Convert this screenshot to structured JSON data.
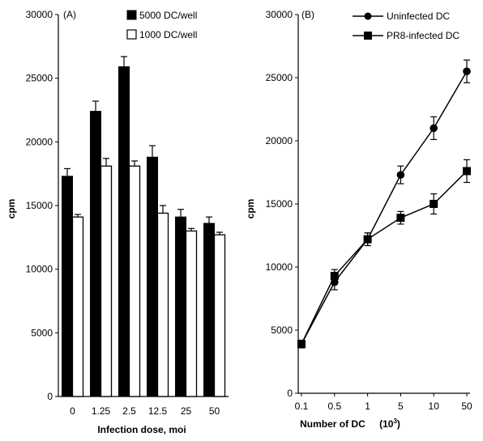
{
  "chart_data": [
    {
      "type": "bar",
      "panel_label": "(A)",
      "xlabel": "Infection dose, moi",
      "ylabel": "cpm",
      "ylim": [
        0,
        30000
      ],
      "yticks": [
        0,
        5000,
        10000,
        15000,
        20000,
        25000,
        30000
      ],
      "categories": [
        "0",
        "1.25",
        "2.5",
        "12.5",
        "25",
        "50"
      ],
      "legend_position": "top-right",
      "series": [
        {
          "name": "5000 DC/well",
          "color": "#000000",
          "values": [
            17300,
            22400,
            25900,
            18800,
            14100,
            13600
          ],
          "errors": [
            600,
            800,
            800,
            900,
            600,
            500
          ]
        },
        {
          "name": "1000 DC/well",
          "color": "#ffffff",
          "values": [
            14100,
            18100,
            18100,
            14400,
            13000,
            12700
          ],
          "errors": [
            200,
            600,
            400,
            600,
            200,
            200
          ]
        }
      ]
    },
    {
      "type": "line",
      "panel_label": "(B)",
      "xlabel": "Number of DC",
      "xlabel_unit": "(10",
      "xlabel_unit_sup": "3",
      "xlabel_unit_close": ")",
      "ylabel": "cpm",
      "ylim": [
        0,
        30000
      ],
      "yticks": [
        0,
        5000,
        10000,
        15000,
        20000,
        25000,
        30000
      ],
      "categories": [
        "0.1",
        "0.5",
        "1",
        "5",
        "10",
        "50"
      ],
      "legend_position": "top-left",
      "series": [
        {
          "name": "Uninfected DC",
          "marker": "circle",
          "values": [
            3900,
            8800,
            12200,
            17300,
            21000,
            25500
          ],
          "errors": [
            300,
            600,
            500,
            700,
            900,
            900
          ]
        },
        {
          "name": "PR8-infected DC",
          "marker": "square",
          "values": [
            3900,
            9300,
            12200,
            13900,
            15000,
            17600
          ],
          "errors": [
            300,
            500,
            500,
            500,
            800,
            900
          ]
        }
      ]
    }
  ]
}
